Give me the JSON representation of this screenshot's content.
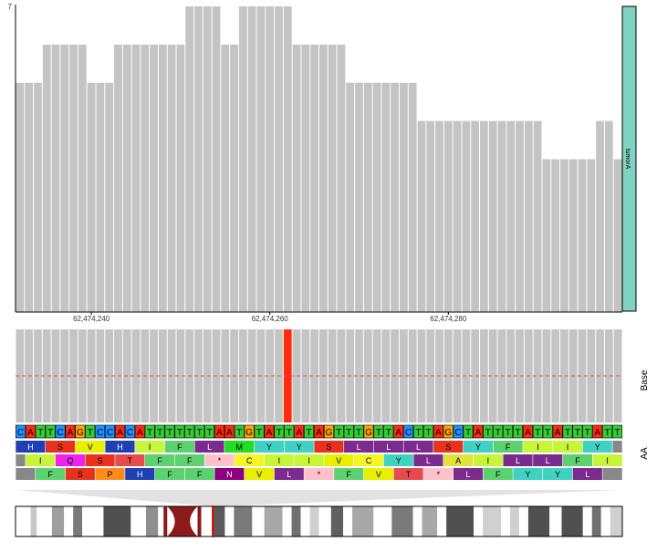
{
  "chart_data": {
    "type": "bar",
    "x_start": 62474232,
    "coverage": [
      6,
      6,
      6,
      7,
      7,
      7,
      7,
      7,
      6,
      6,
      6,
      7,
      7,
      7,
      7,
      7,
      7,
      7,
      7,
      8,
      8,
      8,
      8,
      7,
      7,
      8,
      8,
      8,
      8,
      8,
      8,
      7,
      7,
      7,
      7,
      7,
      7,
      6,
      6,
      6,
      6,
      6,
      6,
      6,
      6,
      5,
      5,
      5,
      5,
      5,
      5,
      5,
      5,
      5,
      5,
      5,
      5,
      5,
      5,
      4,
      4,
      4,
      4,
      4,
      4,
      5,
      5,
      4
    ],
    "ylim": [
      0,
      7
    ],
    "y_tick_label": "7",
    "x_ticks": [
      {
        "pos": 62474240,
        "label": "62,474,240"
      },
      {
        "pos": 62474260,
        "label": "62,474,260"
      },
      {
        "pos": 62474280,
        "label": "62,474,280"
      }
    ],
    "track_name": "tumorA",
    "base_panel_label": "Base",
    "aa_panel_label": "AA",
    "highlight_position": 62474262,
    "highlight_color": "#ff2a10",
    "bar_color": "#c4c4c4",
    "track_color": "#7fd3c0",
    "sequence": "CATTCAGTCCACATTTTTTTAATGTATTATAGTTTGTTACTTAGCTATTTTATTATTTATT",
    "reading_frames": [
      [
        "H",
        "S",
        "V",
        "H",
        "I",
        "F",
        "L",
        "M",
        "Y",
        "Y",
        "S",
        "L",
        "L",
        "L",
        "S",
        "Y",
        "F",
        "I",
        "I",
        "Y"
      ],
      [
        "I",
        "Q",
        "S",
        "T",
        "F",
        "F",
        "*",
        "C",
        "I",
        "I",
        "V",
        "C",
        "Y",
        "L",
        "A",
        "I",
        "L",
        "L",
        "F",
        "I"
      ],
      [
        "F",
        "S",
        "P",
        "H",
        "F",
        "F",
        "N",
        "V",
        "L",
        "*",
        "F",
        "V",
        "T",
        "*",
        "L",
        "F",
        "Y",
        "Y",
        "L"
      ]
    ],
    "base_colors": {
      "A": "#ff2a10",
      "C": "#1e90ff",
      "G": "#ffa500",
      "T": "#33cc33"
    },
    "aa_colors": {
      "H": "#1f3fb5",
      "S": "#e8321e",
      "V": "#e8f000",
      "I": "#c8f53a",
      "F": "#5cd16f",
      "L": "#7b2a8e",
      "M": "#22dd22",
      "Y": "#3fd1c1",
      "Q": "#ee22ee",
      "T": "#e84b4b",
      "C": "#f5f526",
      "*": "#ffc0cb",
      "A": "#e2e23a",
      "P": "#ff8c1a",
      "N": "#8b0080"
    },
    "ideogram_bands": [
      {
        "s": 0,
        "e": 0.025,
        "c": "#ffffff"
      },
      {
        "s": 0.025,
        "e": 0.035,
        "c": "#c8c8c8"
      },
      {
        "s": 0.035,
        "e": 0.06,
        "c": "#ffffff"
      },
      {
        "s": 0.06,
        "e": 0.08,
        "c": "#9e9e9e"
      },
      {
        "s": 0.08,
        "e": 0.095,
        "c": "#ffffff"
      },
      {
        "s": 0.095,
        "e": 0.11,
        "c": "#7a7a7a"
      },
      {
        "s": 0.11,
        "e": 0.145,
        "c": "#ffffff"
      },
      {
        "s": 0.145,
        "e": 0.19,
        "c": "#505050"
      },
      {
        "s": 0.19,
        "e": 0.215,
        "c": "#ffffff"
      },
      {
        "s": 0.215,
        "e": 0.235,
        "c": "#8f8f8f"
      },
      {
        "s": 0.235,
        "e": 0.25,
        "c": "#ffffff"
      },
      {
        "s": 0.3,
        "e": 0.325,
        "c": "#ffffff"
      },
      {
        "s": 0.325,
        "e": 0.345,
        "c": "#5a5a5a"
      },
      {
        "s": 0.345,
        "e": 0.36,
        "c": "#ffffff"
      },
      {
        "s": 0.36,
        "e": 0.39,
        "c": "#7a7a7a"
      },
      {
        "s": 0.39,
        "e": 0.41,
        "c": "#ffffff"
      },
      {
        "s": 0.41,
        "e": 0.44,
        "c": "#a8a8a8"
      },
      {
        "s": 0.44,
        "e": 0.455,
        "c": "#ffffff"
      },
      {
        "s": 0.455,
        "e": 0.47,
        "c": "#707070"
      },
      {
        "s": 0.47,
        "e": 0.485,
        "c": "#ffffff"
      },
      {
        "s": 0.485,
        "e": 0.5,
        "c": "#d0d0d0"
      },
      {
        "s": 0.5,
        "e": 0.52,
        "c": "#ffffff"
      },
      {
        "s": 0.52,
        "e": 0.54,
        "c": "#606060"
      },
      {
        "s": 0.54,
        "e": 0.555,
        "c": "#ffffff"
      },
      {
        "s": 0.555,
        "e": 0.59,
        "c": "#a8a8a8"
      },
      {
        "s": 0.59,
        "e": 0.62,
        "c": "#ffffff"
      },
      {
        "s": 0.62,
        "e": 0.655,
        "c": "#7a7a7a"
      },
      {
        "s": 0.655,
        "e": 0.67,
        "c": "#ffffff"
      },
      {
        "s": 0.67,
        "e": 0.695,
        "c": "#a8a8a8"
      },
      {
        "s": 0.695,
        "e": 0.71,
        "c": "#ffffff"
      },
      {
        "s": 0.71,
        "e": 0.755,
        "c": "#505050"
      },
      {
        "s": 0.755,
        "e": 0.77,
        "c": "#ffffff"
      },
      {
        "s": 0.77,
        "e": 0.8,
        "c": "#d0d0d0"
      },
      {
        "s": 0.8,
        "e": 0.815,
        "c": "#ffffff"
      },
      {
        "s": 0.815,
        "e": 0.83,
        "c": "#d0d0d0"
      },
      {
        "s": 0.83,
        "e": 0.845,
        "c": "#ffffff"
      },
      {
        "s": 0.845,
        "e": 0.88,
        "c": "#505050"
      },
      {
        "s": 0.88,
        "e": 0.9,
        "c": "#ffffff"
      },
      {
        "s": 0.9,
        "e": 0.935,
        "c": "#505050"
      },
      {
        "s": 0.935,
        "e": 0.95,
        "c": "#ffffff"
      },
      {
        "s": 0.95,
        "e": 0.965,
        "c": "#707070"
      },
      {
        "s": 0.965,
        "e": 0.98,
        "c": "#ffffff"
      },
      {
        "s": 0.98,
        "e": 1.0,
        "c": "#d0d0d0"
      }
    ],
    "centromere": [
      0.25,
      0.3
    ],
    "ideogram_marker": 0.325
  }
}
